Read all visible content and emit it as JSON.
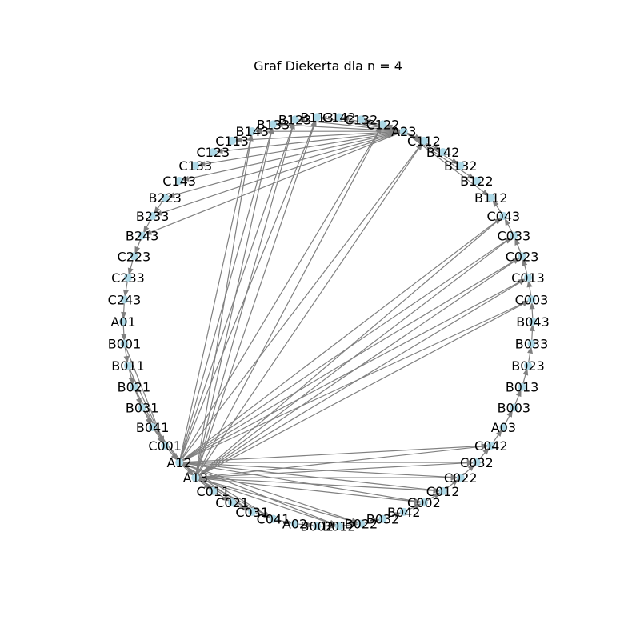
{
  "title": "Graf Diekerta dla n = 4",
  "node_color": "#add8e6",
  "edge_color": "#808080",
  "nodes": [
    {
      "id": "A01"
    },
    {
      "id": "B001"
    },
    {
      "id": "B011"
    },
    {
      "id": "B021"
    },
    {
      "id": "B031"
    },
    {
      "id": "B041"
    },
    {
      "id": "C001"
    },
    {
      "id": "A12"
    },
    {
      "id": "A13"
    },
    {
      "id": "C011"
    },
    {
      "id": "C021"
    },
    {
      "id": "C031"
    },
    {
      "id": "C041"
    },
    {
      "id": "A02"
    },
    {
      "id": "B002"
    },
    {
      "id": "B012"
    },
    {
      "id": "B022"
    },
    {
      "id": "B032"
    },
    {
      "id": "B042"
    },
    {
      "id": "C002"
    },
    {
      "id": "C012"
    },
    {
      "id": "C022"
    },
    {
      "id": "C032"
    },
    {
      "id": "C042"
    },
    {
      "id": "A03"
    },
    {
      "id": "B003"
    },
    {
      "id": "B013"
    },
    {
      "id": "B023"
    },
    {
      "id": "B033"
    },
    {
      "id": "B043"
    },
    {
      "id": "C003"
    },
    {
      "id": "C013"
    },
    {
      "id": "C023"
    },
    {
      "id": "C033"
    },
    {
      "id": "C043"
    },
    {
      "id": "B112"
    },
    {
      "id": "B122"
    },
    {
      "id": "B132"
    },
    {
      "id": "B142"
    },
    {
      "id": "C112"
    },
    {
      "id": "A23"
    },
    {
      "id": "C122"
    },
    {
      "id": "C132"
    },
    {
      "id": "C142"
    },
    {
      "id": "B113"
    },
    {
      "id": "B123"
    },
    {
      "id": "B133"
    },
    {
      "id": "B143"
    },
    {
      "id": "C113"
    },
    {
      "id": "C123"
    },
    {
      "id": "C133"
    },
    {
      "id": "C143"
    },
    {
      "id": "B223"
    },
    {
      "id": "B233"
    },
    {
      "id": "B243"
    },
    {
      "id": "C223"
    },
    {
      "id": "C233"
    },
    {
      "id": "C243"
    }
  ],
  "edges": [
    [
      "A01",
      "B001"
    ],
    [
      "B001",
      "B011"
    ],
    [
      "B011",
      "B021"
    ],
    [
      "B021",
      "B031"
    ],
    [
      "B031",
      "B041"
    ],
    [
      "B041",
      "C001"
    ],
    [
      "C001",
      "A12"
    ],
    [
      "A12",
      "A13"
    ],
    [
      "A13",
      "C011"
    ],
    [
      "C011",
      "C021"
    ],
    [
      "C021",
      "C031"
    ],
    [
      "C031",
      "C041"
    ],
    [
      "C041",
      "A02"
    ],
    [
      "A02",
      "B002"
    ],
    [
      "B002",
      "B012"
    ],
    [
      "B012",
      "B022"
    ],
    [
      "B022",
      "B032"
    ],
    [
      "B032",
      "B042"
    ],
    [
      "B042",
      "C002"
    ],
    [
      "C002",
      "C012"
    ],
    [
      "C012",
      "C022"
    ],
    [
      "C022",
      "C032"
    ],
    [
      "C032",
      "C042"
    ],
    [
      "C042",
      "A03"
    ],
    [
      "A03",
      "B003"
    ],
    [
      "B003",
      "B013"
    ],
    [
      "B013",
      "B023"
    ],
    [
      "B023",
      "B033"
    ],
    [
      "B033",
      "B043"
    ],
    [
      "B043",
      "C003"
    ],
    [
      "C003",
      "C013"
    ],
    [
      "C013",
      "C023"
    ],
    [
      "C023",
      "C033"
    ],
    [
      "C033",
      "C043"
    ],
    [
      "C043",
      "B112"
    ],
    [
      "A23",
      "B112"
    ],
    [
      "A23",
      "B122"
    ],
    [
      "A23",
      "B132"
    ],
    [
      "A23",
      "B142"
    ],
    [
      "A23",
      "C112"
    ],
    [
      "A23",
      "C122"
    ],
    [
      "A23",
      "C132"
    ],
    [
      "A23",
      "C142"
    ],
    [
      "A23",
      "B113"
    ],
    [
      "A23",
      "B123"
    ],
    [
      "A23",
      "B133"
    ],
    [
      "A23",
      "B143"
    ],
    [
      "A23",
      "C113"
    ],
    [
      "A23",
      "C123"
    ],
    [
      "A23",
      "C133"
    ],
    [
      "A23",
      "C143"
    ],
    [
      "A23",
      "B223"
    ],
    [
      "A23",
      "B233"
    ],
    [
      "A23",
      "B243"
    ],
    [
      "B223",
      "B233"
    ],
    [
      "B233",
      "B243"
    ],
    [
      "B243",
      "C223"
    ],
    [
      "C223",
      "C233"
    ],
    [
      "C233",
      "C243"
    ],
    [
      "C243",
      "A01"
    ],
    [
      "A12",
      "C002"
    ],
    [
      "A12",
      "C012"
    ],
    [
      "A12",
      "C022"
    ],
    [
      "A12",
      "C032"
    ],
    [
      "A12",
      "C042"
    ],
    [
      "A13",
      "C002"
    ],
    [
      "A13",
      "C012"
    ],
    [
      "A13",
      "C022"
    ],
    [
      "A13",
      "C032"
    ],
    [
      "A13",
      "C042"
    ],
    [
      "A12",
      "C003"
    ],
    [
      "A12",
      "C013"
    ],
    [
      "A12",
      "C023"
    ],
    [
      "A12",
      "C033"
    ],
    [
      "A12",
      "C043"
    ],
    [
      "A13",
      "C003"
    ],
    [
      "A13",
      "C013"
    ],
    [
      "A13",
      "C023"
    ],
    [
      "A13",
      "C033"
    ],
    [
      "A13",
      "C043"
    ],
    [
      "A12",
      "C112"
    ],
    [
      "A12",
      "C122"
    ],
    [
      "A13",
      "C112"
    ],
    [
      "A13",
      "C122"
    ],
    [
      "A12",
      "B113"
    ],
    [
      "A12",
      "B123"
    ],
    [
      "A12",
      "B133"
    ],
    [
      "A12",
      "B143"
    ],
    [
      "A13",
      "B113"
    ],
    [
      "A13",
      "B123"
    ],
    [
      "A13",
      "B133"
    ],
    [
      "A13",
      "B143"
    ],
    [
      "A12",
      "C041"
    ],
    [
      "A12",
      "C031"
    ],
    [
      "A13",
      "C041"
    ],
    [
      "A13",
      "C031"
    ],
    [
      "A12",
      "B012"
    ],
    [
      "A13",
      "B012"
    ],
    [
      "A12",
      "B022"
    ],
    [
      "A13",
      "B022"
    ],
    [
      "B001",
      "C001"
    ],
    [
      "B011",
      "C001"
    ],
    [
      "B021",
      "C001"
    ],
    [
      "B031",
      "A12"
    ],
    [
      "B041",
      "A13"
    ]
  ]
}
